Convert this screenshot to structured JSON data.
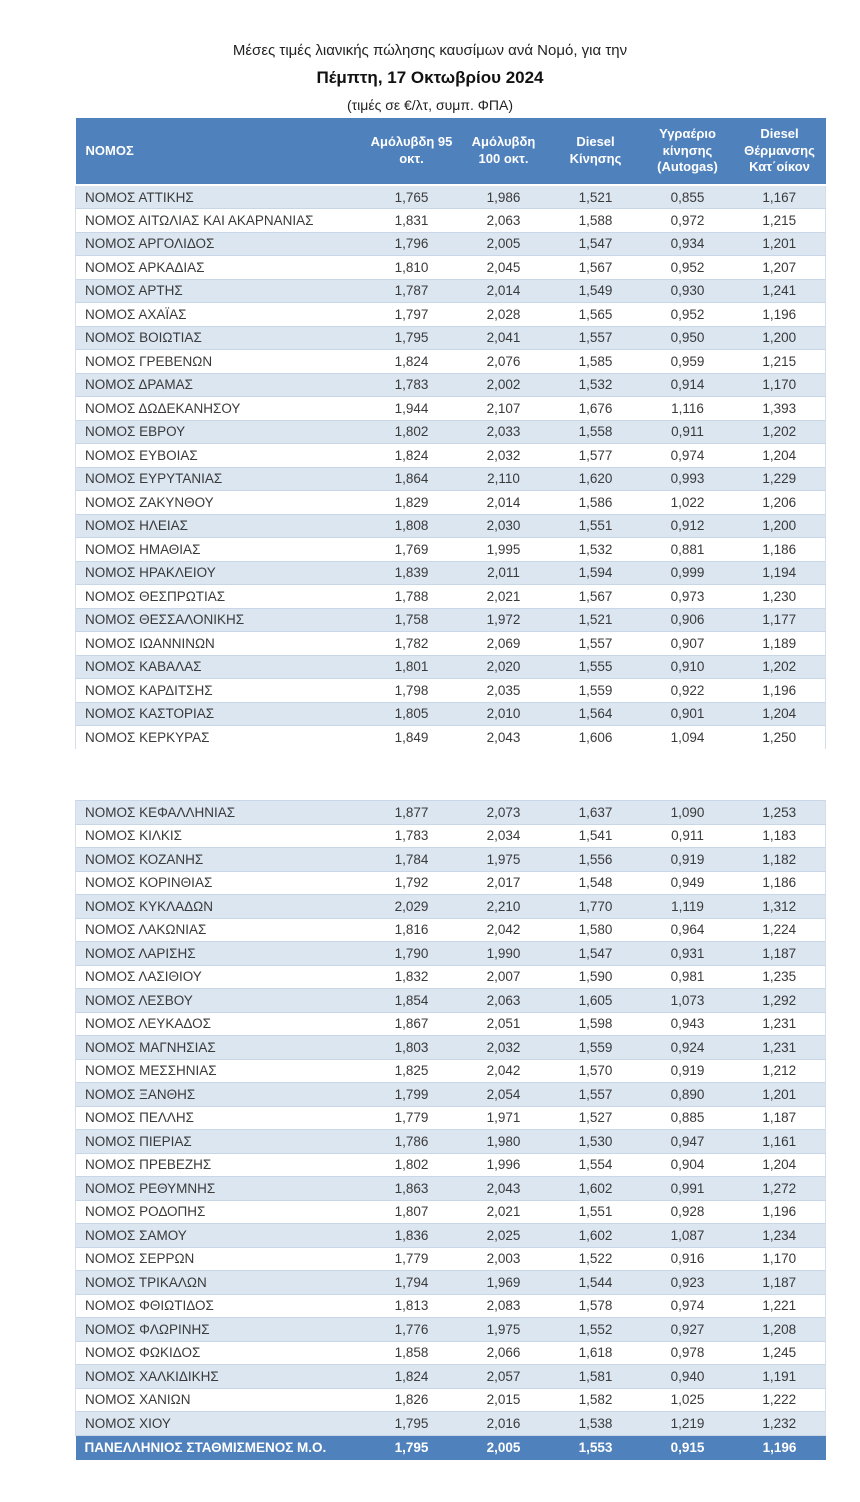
{
  "title": {
    "line1": "Μέσες τιμές λιανικής πώλησης καυσίμων ανά Νομό, για την",
    "line2": "Πέμπτη, 17 Οκτωβρίου 2024",
    "line3": "(τιμές σε €/λτ, συμπ. ΦΠΑ)"
  },
  "colors": {
    "header_blue": "#4f81bd",
    "band_light_blue": "#dce6f1",
    "band_white": "#ffffff",
    "row_text": "#3a3a3a",
    "header_text": "#ffffff"
  },
  "table": {
    "columns": [
      "ΝΟΜΟΣ",
      "Αμόλυβδη 95 οκτ.",
      "Αμόλυβδη 100 οκτ.",
      "Diesel Κίνησης",
      "Υγραέριο κίνησης (Autogas)",
      "Diesel Θέρμανσης Κατ΄οίκον"
    ],
    "block1_rows": [
      [
        "ΝΟΜΟΣ ΑΤΤΙΚΗΣ",
        "1,765",
        "1,986",
        "1,521",
        "0,855",
        "1,167"
      ],
      [
        "ΝΟΜΟΣ ΑΙΤΩΛΙΑΣ ΚΑΙ ΑΚΑΡΝΑΝΙΑΣ",
        "1,831",
        "2,063",
        "1,588",
        "0,972",
        "1,215"
      ],
      [
        "ΝΟΜΟΣ ΑΡΓΟΛΙΔΟΣ",
        "1,796",
        "2,005",
        "1,547",
        "0,934",
        "1,201"
      ],
      [
        "ΝΟΜΟΣ ΑΡΚΑΔΙΑΣ",
        "1,810",
        "2,045",
        "1,567",
        "0,952",
        "1,207"
      ],
      [
        "ΝΟΜΟΣ ΑΡΤΗΣ",
        "1,787",
        "2,014",
        "1,549",
        "0,930",
        "1,241"
      ],
      [
        "ΝΟΜΟΣ ΑΧΑΪΑΣ",
        "1,797",
        "2,028",
        "1,565",
        "0,952",
        "1,196"
      ],
      [
        "ΝΟΜΟΣ ΒΟΙΩΤΙΑΣ",
        "1,795",
        "2,041",
        "1,557",
        "0,950",
        "1,200"
      ],
      [
        "ΝΟΜΟΣ ΓΡΕΒΕΝΩΝ",
        "1,824",
        "2,076",
        "1,585",
        "0,959",
        "1,215"
      ],
      [
        "ΝΟΜΟΣ ΔΡΑΜΑΣ",
        "1,783",
        "2,002",
        "1,532",
        "0,914",
        "1,170"
      ],
      [
        "ΝΟΜΟΣ ΔΩΔΕΚΑΝΗΣΟΥ",
        "1,944",
        "2,107",
        "1,676",
        "1,116",
        "1,393"
      ],
      [
        "ΝΟΜΟΣ ΕΒΡΟΥ",
        "1,802",
        "2,033",
        "1,558",
        "0,911",
        "1,202"
      ],
      [
        "ΝΟΜΟΣ ΕΥΒΟΙΑΣ",
        "1,824",
        "2,032",
        "1,577",
        "0,974",
        "1,204"
      ],
      [
        "ΝΟΜΟΣ ΕΥΡΥΤΑΝΙΑΣ",
        "1,864",
        "2,110",
        "1,620",
        "0,993",
        "1,229"
      ],
      [
        "ΝΟΜΟΣ ΖΑΚΥΝΘΟΥ",
        "1,829",
        "2,014",
        "1,586",
        "1,022",
        "1,206"
      ],
      [
        "ΝΟΜΟΣ ΗΛΕΙΑΣ",
        "1,808",
        "2,030",
        "1,551",
        "0,912",
        "1,200"
      ],
      [
        "ΝΟΜΟΣ ΗΜΑΘΙΑΣ",
        "1,769",
        "1,995",
        "1,532",
        "0,881",
        "1,186"
      ],
      [
        "ΝΟΜΟΣ ΗΡΑΚΛΕΙΟΥ",
        "1,839",
        "2,011",
        "1,594",
        "0,999",
        "1,194"
      ],
      [
        "ΝΟΜΟΣ ΘΕΣΠΡΩΤΙΑΣ",
        "1,788",
        "2,021",
        "1,567",
        "0,973",
        "1,230"
      ],
      [
        "ΝΟΜΟΣ ΘΕΣΣΑΛΟΝΙΚΗΣ",
        "1,758",
        "1,972",
        "1,521",
        "0,906",
        "1,177"
      ],
      [
        "ΝΟΜΟΣ ΙΩΑΝΝΙΝΩΝ",
        "1,782",
        "2,069",
        "1,557",
        "0,907",
        "1,189"
      ],
      [
        "ΝΟΜΟΣ ΚΑΒΑΛΑΣ",
        "1,801",
        "2,020",
        "1,555",
        "0,910",
        "1,202"
      ],
      [
        "ΝΟΜΟΣ ΚΑΡΔΙΤΣΗΣ",
        "1,798",
        "2,035",
        "1,559",
        "0,922",
        "1,196"
      ],
      [
        "ΝΟΜΟΣ ΚΑΣΤΟΡΙΑΣ",
        "1,805",
        "2,010",
        "1,564",
        "0,901",
        "1,204"
      ],
      [
        "ΝΟΜΟΣ ΚΕΡΚΥΡΑΣ",
        "1,849",
        "2,043",
        "1,606",
        "1,094",
        "1,250"
      ]
    ],
    "block2_rows": [
      [
        "ΝΟΜΟΣ ΚΕΦΑΛΛΗΝΙΑΣ",
        "1,877",
        "2,073",
        "1,637",
        "1,090",
        "1,253"
      ],
      [
        "ΝΟΜΟΣ ΚΙΛΚΙΣ",
        "1,783",
        "2,034",
        "1,541",
        "0,911",
        "1,183"
      ],
      [
        "ΝΟΜΟΣ ΚΟΖΑΝΗΣ",
        "1,784",
        "1,975",
        "1,556",
        "0,919",
        "1,182"
      ],
      [
        "ΝΟΜΟΣ ΚΟΡΙΝΘΙΑΣ",
        "1,792",
        "2,017",
        "1,548",
        "0,949",
        "1,186"
      ],
      [
        "ΝΟΜΟΣ ΚΥΚΛΑΔΩΝ",
        "2,029",
        "2,210",
        "1,770",
        "1,119",
        "1,312"
      ],
      [
        "ΝΟΜΟΣ ΛΑΚΩΝΙΑΣ",
        "1,816",
        "2,042",
        "1,580",
        "0,964",
        "1,224"
      ],
      [
        "ΝΟΜΟΣ ΛΑΡΙΣΗΣ",
        "1,790",
        "1,990",
        "1,547",
        "0,931",
        "1,187"
      ],
      [
        "ΝΟΜΟΣ ΛΑΣΙΘΙΟΥ",
        "1,832",
        "2,007",
        "1,590",
        "0,981",
        "1,235"
      ],
      [
        "ΝΟΜΟΣ ΛΕΣΒΟΥ",
        "1,854",
        "2,063",
        "1,605",
        "1,073",
        "1,292"
      ],
      [
        "ΝΟΜΟΣ ΛΕΥΚΑΔΟΣ",
        "1,867",
        "2,051",
        "1,598",
        "0,943",
        "1,231"
      ],
      [
        "ΝΟΜΟΣ ΜΑΓΝΗΣΙΑΣ",
        "1,803",
        "2,032",
        "1,559",
        "0,924",
        "1,231"
      ],
      [
        "ΝΟΜΟΣ ΜΕΣΣΗΝΙΑΣ",
        "1,825",
        "2,042",
        "1,570",
        "0,919",
        "1,212"
      ],
      [
        "ΝΟΜΟΣ ΞΑΝΘΗΣ",
        "1,799",
        "2,054",
        "1,557",
        "0,890",
        "1,201"
      ],
      [
        "ΝΟΜΟΣ ΠΕΛΛΗΣ",
        "1,779",
        "1,971",
        "1,527",
        "0,885",
        "1,187"
      ],
      [
        "ΝΟΜΟΣ ΠΙΕΡΙΑΣ",
        "1,786",
        "1,980",
        "1,530",
        "0,947",
        "1,161"
      ],
      [
        "ΝΟΜΟΣ ΠΡΕΒΕΖΗΣ",
        "1,802",
        "1,996",
        "1,554",
        "0,904",
        "1,204"
      ],
      [
        "ΝΟΜΟΣ ΡΕΘΥΜΝΗΣ",
        "1,863",
        "2,043",
        "1,602",
        "0,991",
        "1,272"
      ],
      [
        "ΝΟΜΟΣ ΡΟΔΟΠΗΣ",
        "1,807",
        "2,021",
        "1,551",
        "0,928",
        "1,196"
      ],
      [
        "ΝΟΜΟΣ ΣΑΜΟΥ",
        "1,836",
        "2,025",
        "1,602",
        "1,087",
        "1,234"
      ],
      [
        "ΝΟΜΟΣ ΣΕΡΡΩΝ",
        "1,779",
        "2,003",
        "1,522",
        "0,916",
        "1,170"
      ],
      [
        "ΝΟΜΟΣ ΤΡΙΚΑΛΩΝ",
        "1,794",
        "1,969",
        "1,544",
        "0,923",
        "1,187"
      ],
      [
        "ΝΟΜΟΣ ΦΘΙΩΤΙΔΟΣ",
        "1,813",
        "2,083",
        "1,578",
        "0,974",
        "1,221"
      ],
      [
        "ΝΟΜΟΣ ΦΛΩΡΙΝΗΣ",
        "1,776",
        "1,975",
        "1,552",
        "0,927",
        "1,208"
      ],
      [
        "ΝΟΜΟΣ ΦΩΚΙΔΟΣ",
        "1,858",
        "2,066",
        "1,618",
        "0,978",
        "1,245"
      ],
      [
        "ΝΟΜΟΣ ΧΑΛΚΙΔΙΚΗΣ",
        "1,824",
        "2,057",
        "1,581",
        "0,940",
        "1,191"
      ],
      [
        "ΝΟΜΟΣ ΧΑΝΙΩΝ",
        "1,826",
        "2,015",
        "1,582",
        "1,025",
        "1,222"
      ],
      [
        "ΝΟΜΟΣ ΧΙΟΥ",
        "1,795",
        "2,016",
        "1,538",
        "1,219",
        "1,232"
      ]
    ],
    "footer": {
      "label": "ΠΑΝΕΛΛΗΝΙΟΣ ΣΤΑΘΜΙΣΜΕΝΟΣ Μ.Ο.",
      "values": [
        "1,795",
        "2,005",
        "1,553",
        "0,915",
        "1,196"
      ]
    }
  }
}
